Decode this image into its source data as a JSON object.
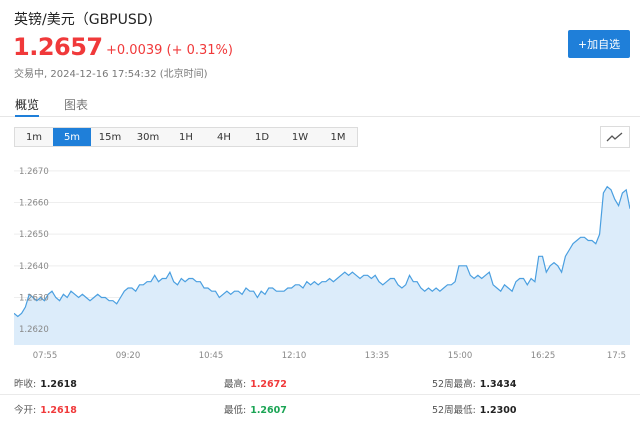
{
  "header": {
    "title": "英镑/美元（GBPUSD)",
    "price": "1.2657",
    "change": "+0.0039 (+ 0.31%)",
    "status": "交易中, 2024-12-16 17:54:32 (北京时间)",
    "add_button": "+加自选"
  },
  "view_tabs": [
    {
      "label": "概览",
      "active": true
    },
    {
      "label": "图表",
      "active": false
    }
  ],
  "periods": [
    {
      "label": "1m",
      "active": false
    },
    {
      "label": "5m",
      "active": true
    },
    {
      "label": "15m",
      "active": false
    },
    {
      "label": "30m",
      "active": false
    },
    {
      "label": "1H",
      "active": false
    },
    {
      "label": "4H",
      "active": false
    },
    {
      "label": "1D",
      "active": false
    },
    {
      "label": "1W",
      "active": false
    },
    {
      "label": "1M",
      "active": false
    }
  ],
  "chart_toggle_icon": "line-chart-icon",
  "colors": {
    "up": "#f0393a",
    "down": "#1aa454",
    "accent": "#1f7fd9",
    "line": "#4a9fe0",
    "fill": "#dcecfa"
  },
  "chart_data": {
    "type": "area",
    "ylim": [
      1.2615,
      1.2675
    ],
    "yticks": [
      "1.2620",
      "1.2630",
      "1.2640",
      "1.2650",
      "1.2660",
      "1.2670"
    ],
    "xticks": [
      "07:55",
      "09:20",
      "10:45",
      "12:10",
      "13:35",
      "15:00",
      "16:25",
      "17:5"
    ],
    "values": [
      1.2625,
      1.2624,
      1.2625,
      1.2627,
      1.2631,
      1.263,
      1.2629,
      1.263,
      1.2629,
      1.2631,
      1.2632,
      1.263,
      1.2629,
      1.2631,
      1.263,
      1.2632,
      1.2631,
      1.263,
      1.2631,
      1.263,
      1.2629,
      1.263,
      1.2631,
      1.263,
      1.263,
      1.2629,
      1.2629,
      1.2628,
      1.263,
      1.2632,
      1.2633,
      1.2633,
      1.2632,
      1.2634,
      1.2634,
      1.2635,
      1.2635,
      1.2637,
      1.2635,
      1.2636,
      1.2636,
      1.2638,
      1.2635,
      1.2634,
      1.2636,
      1.2635,
      1.2636,
      1.2636,
      1.2635,
      1.2635,
      1.2633,
      1.2633,
      1.2632,
      1.2632,
      1.263,
      1.2631,
      1.2632,
      1.2631,
      1.2632,
      1.2632,
      1.2631,
      1.2633,
      1.2632,
      1.2632,
      1.263,
      1.2632,
      1.2631,
      1.2633,
      1.2633,
      1.2632,
      1.2632,
      1.2632,
      1.2633,
      1.2633,
      1.2634,
      1.2634,
      1.2633,
      1.2635,
      1.2634,
      1.2635,
      1.2634,
      1.2635,
      1.2635,
      1.2636,
      1.2635,
      1.2636,
      1.2637,
      1.2638,
      1.2637,
      1.2638,
      1.2637,
      1.2636,
      1.2637,
      1.2637,
      1.2636,
      1.2637,
      1.2635,
      1.2634,
      1.2635,
      1.2636,
      1.2636,
      1.2634,
      1.2633,
      1.2634,
      1.2637,
      1.2635,
      1.2635,
      1.2633,
      1.2632,
      1.2633,
      1.2632,
      1.2633,
      1.2632,
      1.2633,
      1.2634,
      1.2634,
      1.2635,
      1.264,
      1.264,
      1.264,
      1.2637,
      1.2636,
      1.2637,
      1.2636,
      1.2637,
      1.2638,
      1.2634,
      1.2633,
      1.2632,
      1.2634,
      1.2633,
      1.2632,
      1.2635,
      1.2636,
      1.2636,
      1.2634,
      1.2636,
      1.2635,
      1.2643,
      1.2643,
      1.2638,
      1.264,
      1.2641,
      1.264,
      1.2638,
      1.2643,
      1.2645,
      1.2647,
      1.2648,
      1.2649,
      1.2649,
      1.2648,
      1.2648,
      1.2647,
      1.265,
      1.2663,
      1.2665,
      1.2664,
      1.2661,
      1.2659,
      1.2663,
      1.2664,
      1.2658
    ]
  },
  "stats": [
    [
      {
        "label": "昨收:",
        "value": "1.2618",
        "color": "dark"
      },
      {
        "label": "最高:",
        "value": "1.2672",
        "color": "red"
      },
      {
        "label": "52周最高:",
        "value": "1.3434",
        "color": "dark"
      }
    ],
    [
      {
        "label": "今开:",
        "value": "1.2618",
        "color": "red"
      },
      {
        "label": "最低:",
        "value": "1.2607",
        "color": "green"
      },
      {
        "label": "52周最低:",
        "value": "1.2300",
        "color": "dark"
      }
    ]
  ]
}
